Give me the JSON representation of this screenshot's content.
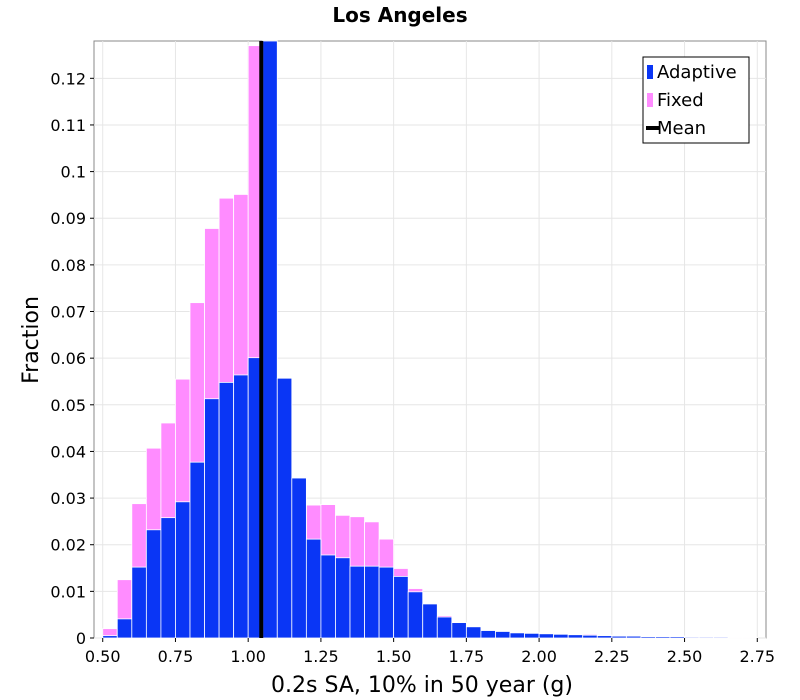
{
  "chart_data": {
    "type": "bar",
    "title": "Los Angeles",
    "xlabel": "0.2s SA, 10% in 50 year (g)",
    "ylabel": "Fraction",
    "xlim": [
      0.47,
      2.78
    ],
    "ylim": [
      0,
      0.128
    ],
    "grid": true,
    "legend_position": "top-right",
    "x_ticks": [
      "0.50",
      "0.75",
      "1.00",
      "1.25",
      "1.50",
      "1.75",
      "2.00",
      "2.25",
      "2.50",
      "2.75"
    ],
    "y_ticks": [
      "0",
      "0.01",
      "0.02",
      "0.03",
      "0.04",
      "0.05",
      "0.06",
      "0.07",
      "0.08",
      "0.09",
      "0.1",
      "0.11",
      "0.12"
    ],
    "bin_width": 0.05,
    "bin_starts": [
      0.5,
      0.55,
      0.6,
      0.65,
      0.7,
      0.75,
      0.8,
      0.85,
      0.9,
      0.95,
      1.0,
      1.05,
      1.1,
      1.15,
      1.2,
      1.25,
      1.3,
      1.35,
      1.4,
      1.45,
      1.5,
      1.55,
      1.6,
      1.65,
      1.7,
      1.75,
      1.8,
      1.85,
      1.9,
      1.95,
      2.0,
      2.05,
      2.1,
      2.15,
      2.2,
      2.25,
      2.3,
      2.35,
      2.4,
      2.45,
      2.5,
      2.55,
      2.6,
      2.65,
      2.7
    ],
    "series": [
      {
        "name": "Fixed",
        "color": "#ff8cff",
        "values": [
          0.002,
          0.0125,
          0.0288,
          0.0407,
          0.0461,
          0.0555,
          0.0719,
          0.0878,
          0.0943,
          0.0951,
          0.127,
          0.0799,
          0.0504,
          0.0331,
          0.0285,
          0.0286,
          0.0263,
          0.026,
          0.0249,
          0.0212,
          0.0149,
          0.0106,
          0.0072,
          0.0048,
          0.0033,
          0.0022,
          0.0016,
          0.0014,
          0.0012,
          0.0011,
          0.001,
          0.0009,
          0.0008,
          0.0008,
          0.0006,
          0.0005,
          0.0005,
          0.0004,
          0.0004,
          0.0004,
          0.0003,
          0.0003,
          0.0003,
          0.0002,
          0.0002
        ]
      },
      {
        "name": "Adaptive",
        "color": "#0a36f5",
        "values": [
          0.0005,
          0.0041,
          0.0152,
          0.0232,
          0.0258,
          0.0292,
          0.0377,
          0.0513,
          0.0548,
          0.0564,
          0.0601,
          0.128,
          0.0557,
          0.0343,
          0.0212,
          0.0178,
          0.0172,
          0.0154,
          0.0154,
          0.0152,
          0.0132,
          0.0099,
          0.0073,
          0.0045,
          0.0033,
          0.0024,
          0.0016,
          0.0014,
          0.0011,
          0.001,
          0.0009,
          0.0008,
          0.0007,
          0.0006,
          0.0005,
          0.0004,
          0.0004,
          0.0003,
          0.0003,
          0.0003,
          0.0002,
          0.0002,
          0.0002,
          0.0001,
          0.0001
        ]
      }
    ],
    "mean_line": {
      "name": "Mean",
      "x": 1.045,
      "color": "#000000"
    },
    "legend": [
      {
        "label": "Adaptive",
        "color": "#0a36f5",
        "kind": "bar"
      },
      {
        "label": "Fixed",
        "color": "#ff8cff",
        "kind": "bar"
      },
      {
        "label": "Mean",
        "color": "#000000",
        "kind": "line"
      }
    ]
  }
}
